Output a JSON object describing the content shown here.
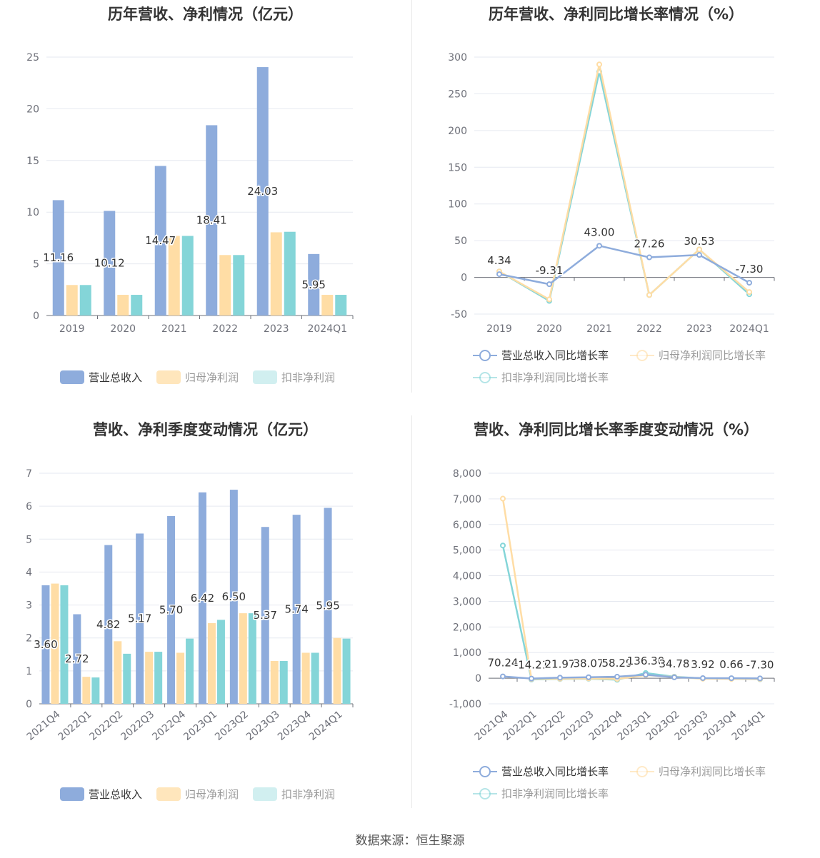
{
  "footer": {
    "source": "数据来源：恒生聚源"
  },
  "colors": {
    "revenue": "#8eacdc",
    "net_profit": "#ffdda5",
    "deducted_profit": "#84d5d8",
    "deducted_profit_legend": "#c2e9eb",
    "grid": "#e6e9f0",
    "axis": "#6e7079"
  },
  "chart_data": [
    {
      "id": "annual-bars",
      "type": "bar",
      "title": "历年营收、净利情况（亿元）",
      "categories": [
        "2019",
        "2020",
        "2021",
        "2022",
        "2023",
        "2024Q1"
      ],
      "ylim": [
        0,
        25
      ],
      "yticks": [
        "0",
        "5",
        "10",
        "15",
        "20",
        "25"
      ],
      "series": [
        {
          "name": "营业总收入",
          "values": [
            11.16,
            10.12,
            14.47,
            18.41,
            24.03,
            5.95
          ]
        },
        {
          "name": "归母净利润",
          "values": [
            2.95,
            2.0,
            7.7,
            5.85,
            8.05,
            2.0
          ]
        },
        {
          "name": "扣非净利润",
          "values": [
            2.95,
            2.0,
            7.7,
            5.85,
            8.1,
            2.0
          ]
        }
      ],
      "data_labels": [
        "11.16",
        "10.12",
        "14.47",
        "18.41",
        "24.03",
        "5.95"
      ],
      "legend": "bottom"
    },
    {
      "id": "annual-growth",
      "type": "line",
      "title": "历年营收、净利同比增长率情况（%）",
      "categories": [
        "2019",
        "2020",
        "2021",
        "2022",
        "2023",
        "2024Q1"
      ],
      "ylim": [
        -50,
        300
      ],
      "yticks": [
        "-50",
        "0",
        "50",
        "100",
        "150",
        "200",
        "250",
        "300"
      ],
      "series": [
        {
          "name": "营业总收入同比增长率",
          "values": [
            4.34,
            -9.31,
            43.0,
            27.26,
            30.53,
            -7.3
          ]
        },
        {
          "name": "归母净利润同比增长率",
          "values": [
            8,
            -30,
            290,
            -24,
            38,
            -20
          ]
        },
        {
          "name": "扣非净利润同比增长率",
          "values": [
            8,
            -32,
            280,
            -24,
            38,
            -23
          ]
        }
      ],
      "data_labels": [
        "4.34",
        "-9.31",
        "43.00",
        "27.26",
        "30.53",
        "-7.30"
      ],
      "legend": "bottom"
    },
    {
      "id": "quarterly-bars",
      "type": "bar",
      "title": "营收、净利季度变动情况（亿元）",
      "categories": [
        "2021Q4",
        "2022Q1",
        "2022Q2",
        "2022Q3",
        "2022Q4",
        "2023Q1",
        "2023Q2",
        "2023Q3",
        "2023Q4",
        "2024Q1"
      ],
      "ylim": [
        0,
        7
      ],
      "yticks": [
        "0",
        "1",
        "2",
        "3",
        "4",
        "5",
        "6",
        "7"
      ],
      "series": [
        {
          "name": "营业总收入",
          "values": [
            3.6,
            2.72,
            4.82,
            5.17,
            5.7,
            6.42,
            6.5,
            5.37,
            5.74,
            5.95
          ]
        },
        {
          "name": "归母净利润",
          "values": [
            3.65,
            0.82,
            1.9,
            1.58,
            1.55,
            2.45,
            2.75,
            1.3,
            1.55,
            2.0
          ]
        },
        {
          "name": "扣非净利润",
          "values": [
            3.6,
            0.8,
            1.52,
            1.58,
            1.98,
            2.55,
            2.75,
            1.3,
            1.55,
            1.98
          ]
        }
      ],
      "data_labels": [
        "3.60",
        "2.72",
        "4.82",
        "5.17",
        "5.70",
        "6.42",
        "6.50",
        "5.37",
        "5.74",
        "5.95"
      ],
      "legend": "bottom"
    },
    {
      "id": "quarterly-growth",
      "type": "line",
      "title": "营收、净利同比增长率季度变动情况（%）",
      "categories": [
        "2021Q4",
        "2022Q1",
        "2022Q2",
        "2022Q3",
        "2022Q4",
        "2023Q1",
        "2023Q2",
        "2023Q3",
        "2023Q4",
        "2024Q1"
      ],
      "ylim": [
        -1000,
        8000
      ],
      "yticks": [
        "-1,000",
        "0",
        "1,000",
        "2,000",
        "3,000",
        "4,000",
        "5,000",
        "6,000",
        "7,000",
        "8,000"
      ],
      "series": [
        {
          "name": "营业总收入同比增长率",
          "values": [
            70.24,
            -14.21,
            21.97,
            38.07,
            58.29,
            136.3,
            34.78,
            3.92,
            0.66,
            -7.3
          ]
        },
        {
          "name": "归母净利润同比增长率",
          "values": [
            7010,
            -30,
            -20,
            -10,
            -30,
            120,
            50,
            -20,
            -25,
            -30
          ]
        },
        {
          "name": "扣非净利润同比增长率",
          "values": [
            5180,
            -50,
            -30,
            -20,
            -60,
            200,
            60,
            -10,
            -20,
            -40
          ]
        }
      ],
      "data_labels": [
        "70.24",
        "-14.21",
        "21.97",
        "38.07",
        "58.29",
        "136.30",
        "34.78",
        "3.92",
        "0.66",
        "-7.30"
      ],
      "legend": "bottom"
    }
  ]
}
